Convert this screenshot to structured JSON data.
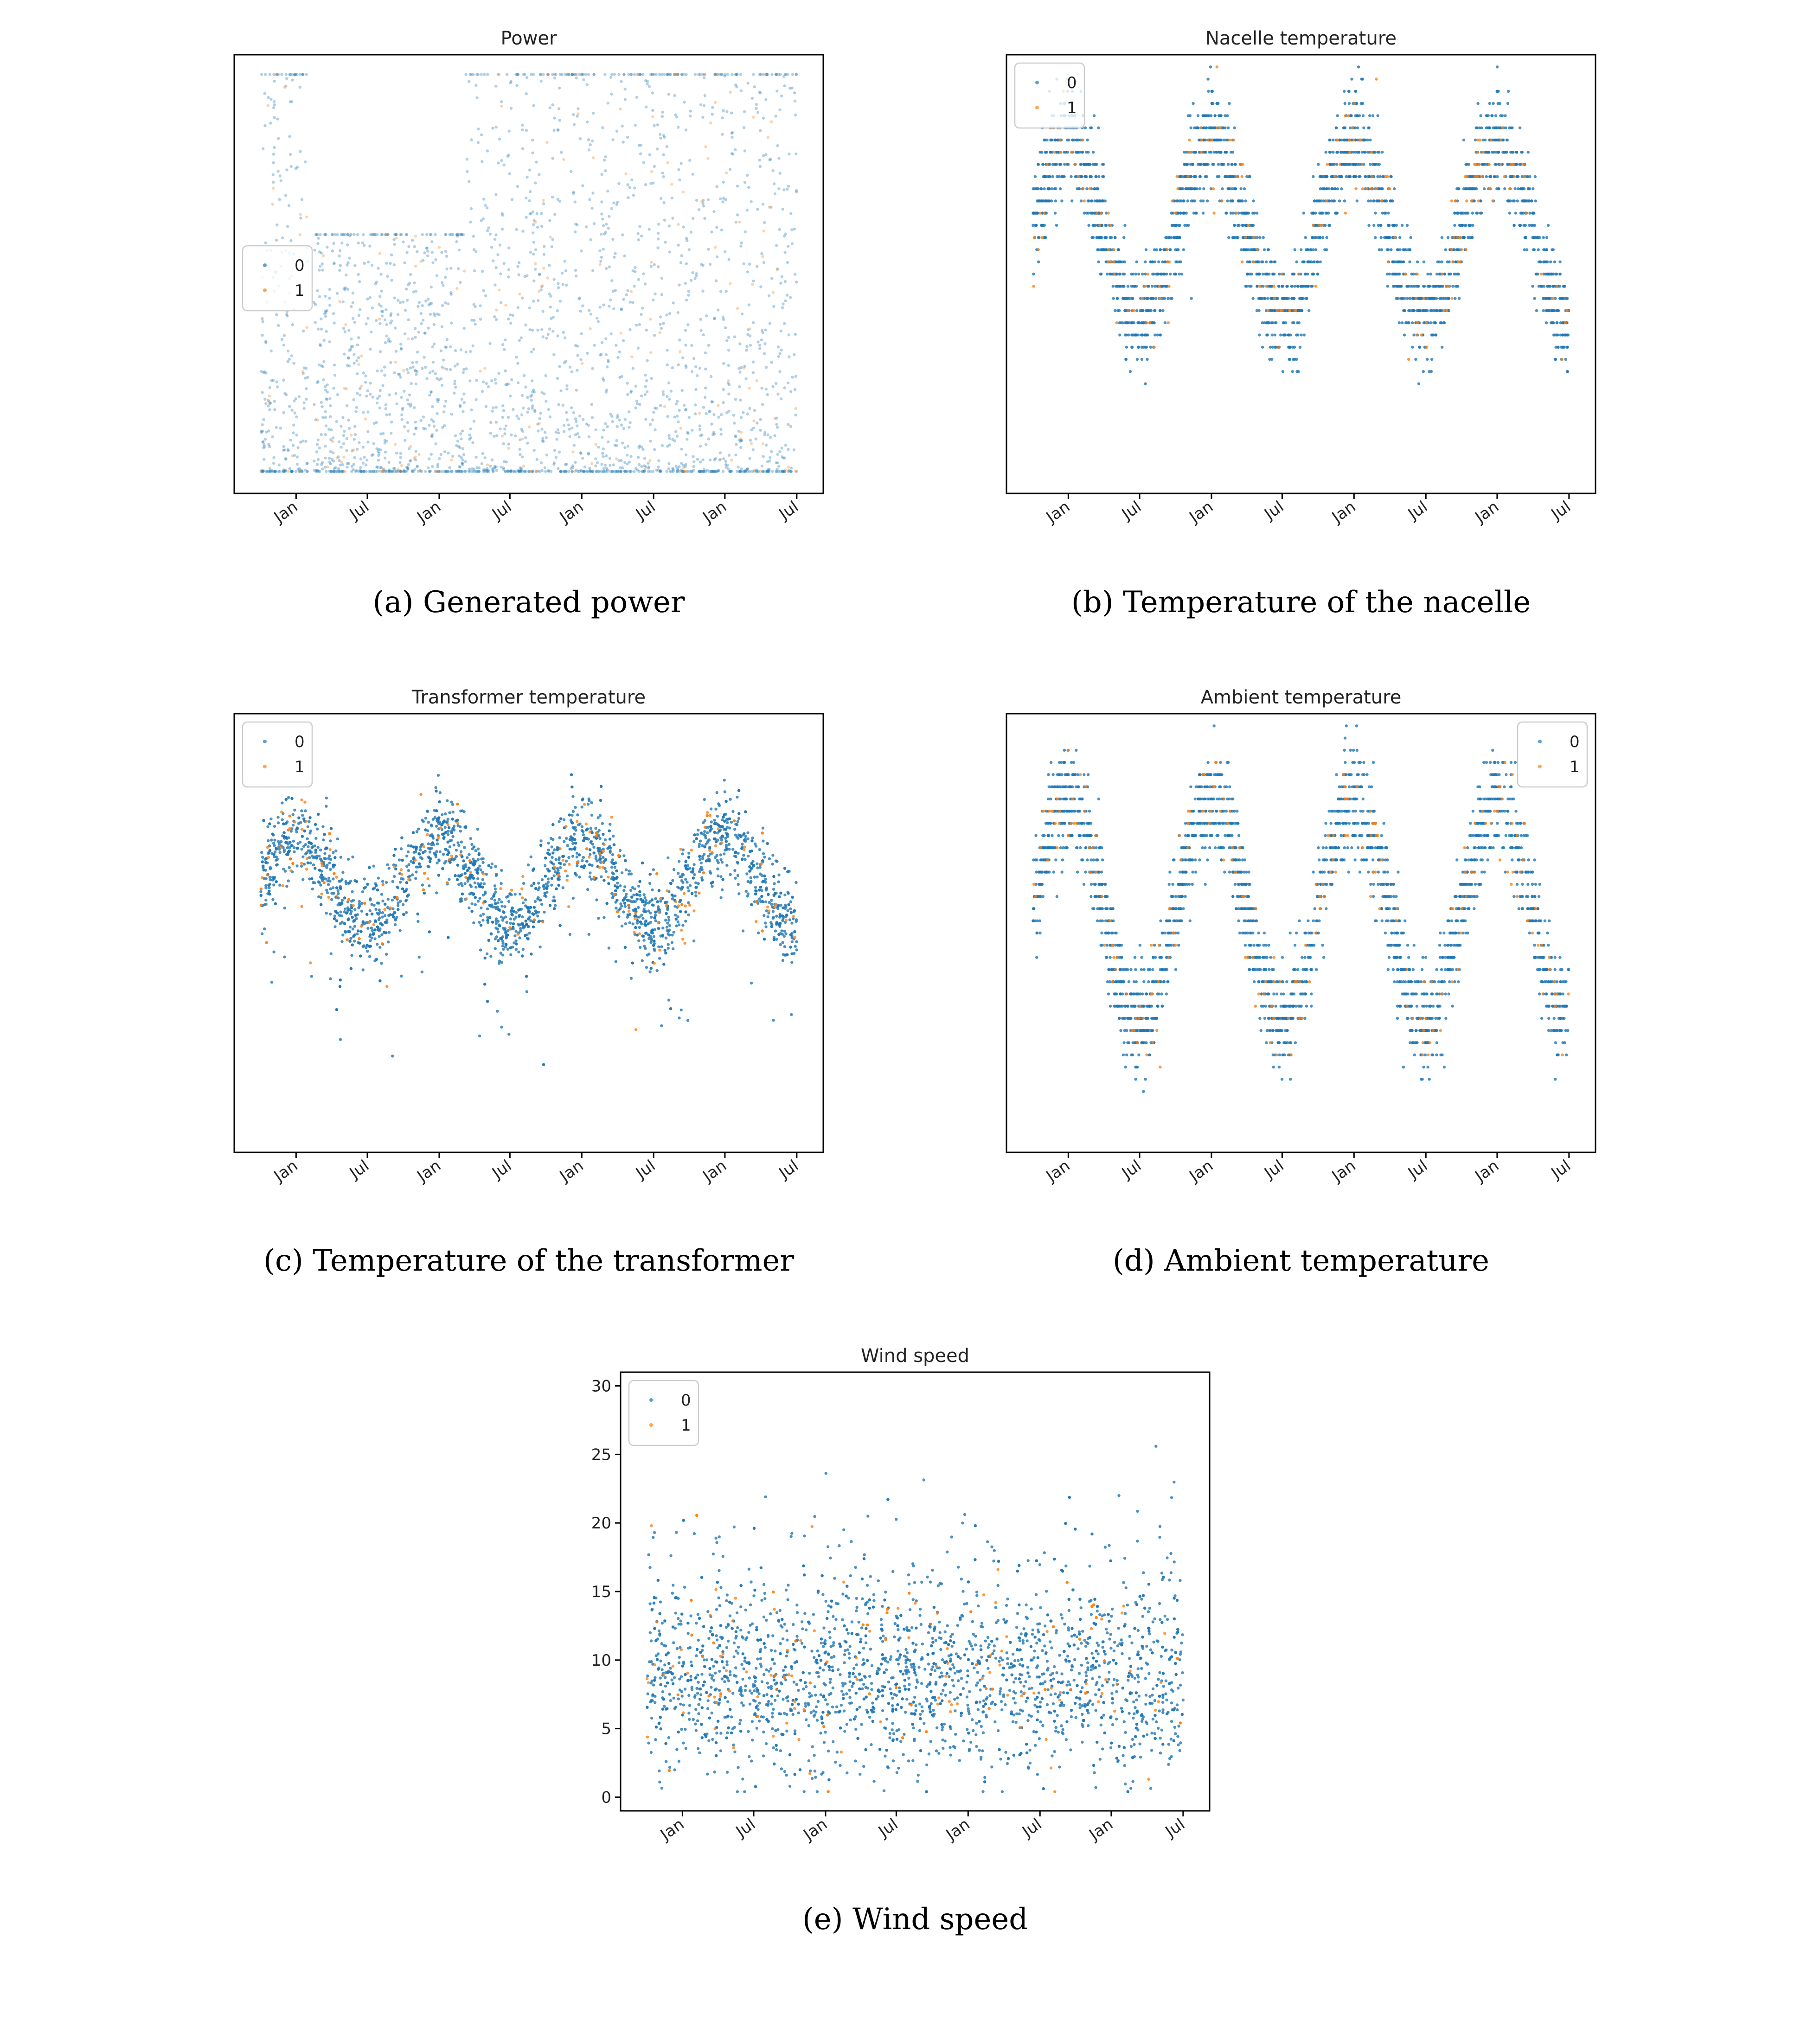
{
  "colors": {
    "class0": "#1f77b4",
    "class1": "#ff7f0e"
  },
  "chart_data": [
    {
      "type": "scatter",
      "title": "Power",
      "caption": "(a) Generated power",
      "xticks": [
        "Jan",
        "Jul",
        "Jan",
        "Jul",
        "Jan",
        "Jul",
        "Jan",
        "Jul"
      ],
      "legend": {
        "entries": [
          "0",
          "1"
        ],
        "position": "center-left"
      },
      "series": [
        {
          "name": "0",
          "pattern": "power",
          "description_levels": {
            "cap_high_early": 1.0,
            "cap_mid": 0.6,
            "cap_high_late": 1.0,
            "floor": 0.0
          }
        },
        {
          "name": "1",
          "pattern": "power"
        }
      ],
      "yticks_visible": false
    },
    {
      "type": "scatter",
      "title": "Nacelle temperature",
      "caption": "(b) Temperature of the nacelle",
      "xticks": [
        "Jan",
        "Jul",
        "Jan",
        "Jul",
        "Jan",
        "Jul",
        "Jan",
        "Jul"
      ],
      "legend": {
        "entries": [
          "0",
          "1"
        ],
        "position": "upper-left"
      },
      "series": [
        {
          "name": "0"
        },
        {
          "name": "1"
        }
      ],
      "yticks_visible": false
    },
    {
      "type": "scatter",
      "title": "Transformer temperature",
      "caption": "(c) Temperature of the transformer",
      "xticks": [
        "Jan",
        "Jul",
        "Jan",
        "Jul",
        "Jan",
        "Jul",
        "Jan",
        "Jul"
      ],
      "legend": {
        "entries": [
          "0",
          "1"
        ],
        "position": "upper-left"
      },
      "series": [
        {
          "name": "0"
        },
        {
          "name": "1"
        }
      ],
      "yticks_visible": false
    },
    {
      "type": "scatter",
      "title": "Ambient temperature",
      "caption": "(d) Ambient temperature",
      "xticks": [
        "Jan",
        "Jul",
        "Jan",
        "Jul",
        "Jan",
        "Jul",
        "Jan",
        "Jul"
      ],
      "legend": {
        "entries": [
          "0",
          "1"
        ],
        "position": "upper-right"
      },
      "series": [
        {
          "name": "0"
        },
        {
          "name": "1"
        }
      ],
      "yticks_visible": false
    },
    {
      "type": "scatter",
      "title": "Wind speed",
      "caption": "(e) Wind speed",
      "xticks": [
        "Jan",
        "Jul",
        "Jan",
        "Jul",
        "Jan",
        "Jul",
        "Jan",
        "Jul"
      ],
      "yticks": [
        "0",
        "5",
        "10",
        "15",
        "20",
        "25",
        "30"
      ],
      "ylim": [
        -1,
        31
      ],
      "legend": {
        "entries": [
          "0",
          "1"
        ],
        "position": "upper-left"
      },
      "series": [
        {
          "name": "0"
        },
        {
          "name": "1"
        }
      ],
      "yticks_visible": true
    }
  ]
}
